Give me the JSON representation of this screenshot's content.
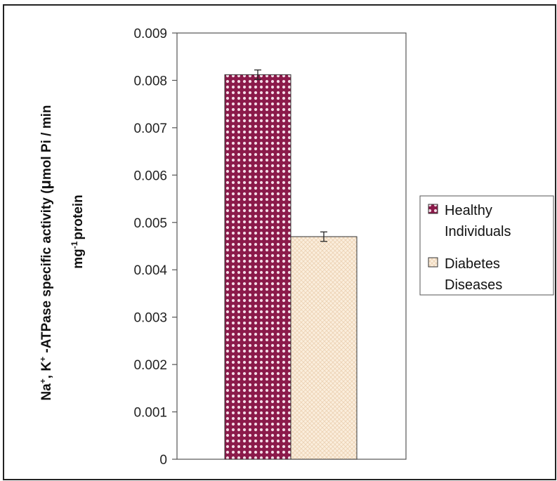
{
  "chart_data": {
    "type": "bar",
    "categories": [
      "Healthy Individuals",
      "Diabetes Diseases"
    ],
    "series": [
      {
        "name": "Healthy Individuals",
        "value": 0.00812,
        "error": 0.0001
      },
      {
        "name": "Diabetes Diseases",
        "value": 0.0047,
        "error": 0.0001
      }
    ],
    "ylabel_line1_parts": [
      "Na",
      "+",
      ", K",
      "+",
      " -ATPase specific activity (",
      "μ",
      "mol Pi / min"
    ],
    "ylabel_line2_parts": [
      "mg",
      "-1",
      "protein"
    ],
    "ylim": [
      0,
      0.009
    ],
    "yticks": [
      "0",
      "0.001",
      "0.002",
      "0.003",
      "0.004",
      "0.005",
      "0.006",
      "0.007",
      "0.008",
      "0.009"
    ],
    "legend": {
      "position": "right",
      "items": [
        {
          "lines": [
            "Healthy",
            "Individuals"
          ],
          "color": "#8b1a4a",
          "pattern": "dotted-grid"
        },
        {
          "lines": [
            "Diabetes",
            "Diseases"
          ],
          "color": "#f7e6d2",
          "pattern": "light-crosshatch"
        }
      ]
    },
    "grid": false,
    "colors": {
      "healthy": "#8b1a4a",
      "diabetes": "#f7e6d2",
      "axis": "#555555"
    }
  }
}
